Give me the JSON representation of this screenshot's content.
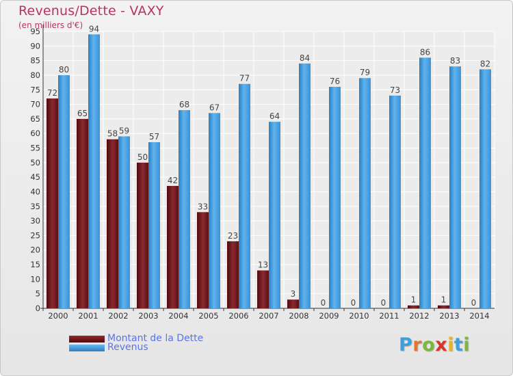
{
  "header": {
    "title": "Revenus/Dette - VAXY",
    "subtitle": "(en milliers d'€)"
  },
  "legend": {
    "dette_label": "Montant de la Dette",
    "revenus_label": "Revenus"
  },
  "logo": {
    "text": "Proxiti",
    "colors": [
      "#3fa0d9",
      "#e8742c",
      "#7ab83a",
      "#d9342b",
      "#e8b12c",
      "#3fa0d9",
      "#7ab83a"
    ]
  },
  "colors": {
    "dette": "#7a1b1f",
    "dette_dark": "#4d0a0e",
    "revenus": "#4ea6e6",
    "revenus_dark": "#2a7fc2",
    "title": "#b5355a",
    "legend_text": "#5a73e8"
  },
  "chart_data": {
    "type": "bar",
    "categories": [
      "2000",
      "2001",
      "2002",
      "2003",
      "2004",
      "2005",
      "2006",
      "2007",
      "2008",
      "2009",
      "2010",
      "2011",
      "2012",
      "2013",
      "2014"
    ],
    "series": [
      {
        "name": "Montant de la Dette",
        "values": [
          72,
          65,
          58,
          50,
          42,
          33,
          23,
          13,
          3,
          0,
          0,
          0,
          1,
          1,
          0
        ]
      },
      {
        "name": "Revenus",
        "values": [
          80,
          94,
          59,
          57,
          68,
          67,
          77,
          64,
          84,
          76,
          79,
          73,
          86,
          83,
          82
        ]
      }
    ],
    "title": "Revenus/Dette - VAXY",
    "ylabel": "(en milliers d'€)",
    "ylim": [
      0,
      95
    ],
    "yticks": [
      0,
      5,
      10,
      15,
      20,
      25,
      30,
      35,
      40,
      45,
      50,
      55,
      60,
      65,
      70,
      75,
      80,
      85,
      90,
      95
    ],
    "grid": true,
    "legend_position": "bottom-left"
  }
}
